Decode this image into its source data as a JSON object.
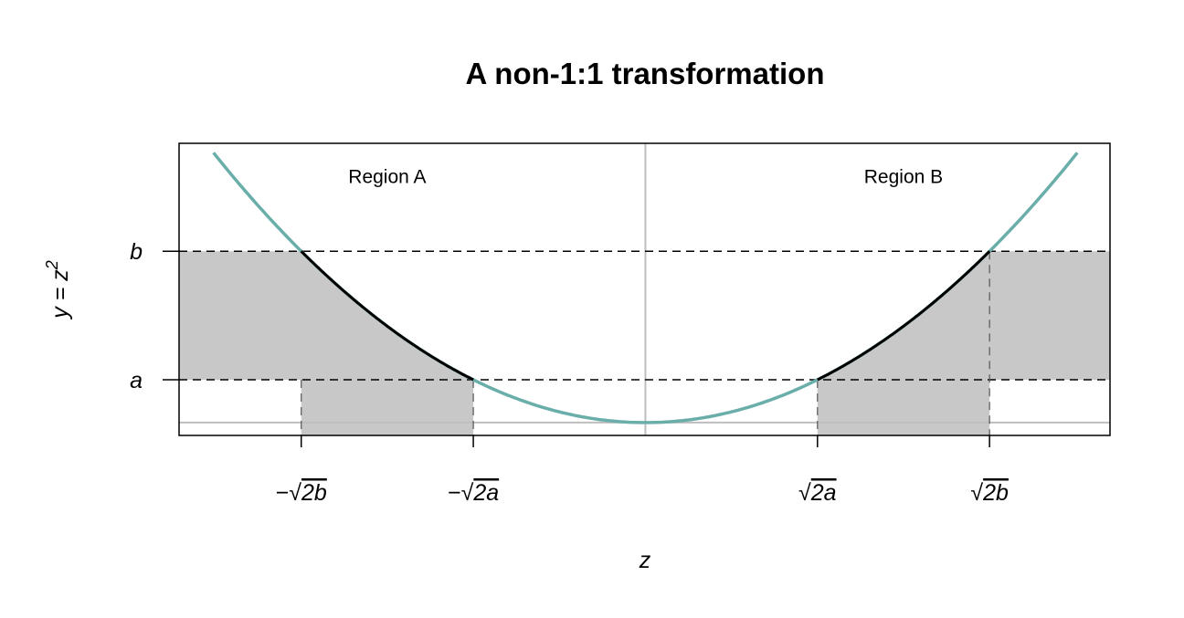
{
  "chart_data": {
    "type": "line",
    "title": "A non-1:1 transformation",
    "xlabel": "z",
    "ylabel": "y = z^2",
    "ylabel_base": "y = z",
    "ylabel_exp": "2",
    "xlim": [
      -2.71,
      2.7
    ],
    "ylim": [
      -0.15,
      3.26
    ],
    "curve_z_range": [
      -2.51,
      2.51
    ],
    "a": 0.5,
    "b": 2,
    "x_ticks": [
      {
        "value": -2,
        "minus": "−",
        "arg": "2b"
      },
      {
        "value": -1,
        "minus": "−",
        "arg": "2a"
      },
      {
        "value": 1,
        "minus": "",
        "arg": "2a"
      },
      {
        "value": 2,
        "minus": "",
        "arg": "2b"
      }
    ],
    "y_ticks": [
      {
        "value": 2,
        "label": "b"
      },
      {
        "value": 0.5,
        "label": "a"
      }
    ],
    "annotations": [
      {
        "text": "Region A",
        "z": -1.5,
        "y": 2.85
      },
      {
        "text": "Region B",
        "z": 1.5,
        "y": 2.85
      }
    ],
    "grid": false,
    "legend": "none",
    "colors": {
      "curve": "#6aaeaa",
      "highlight": "#000000",
      "shade": "#c8c8c8",
      "reference": "#bebebe"
    }
  }
}
